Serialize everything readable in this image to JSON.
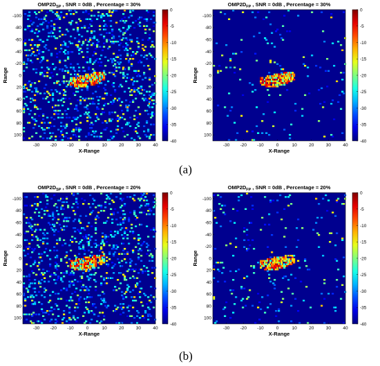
{
  "chart_data": [
    {
      "type": "heatmap",
      "title_main": "OMP2D",
      "title_sub": "SP",
      "title_rest": " , SNR = 0dB , Percentage = 30%",
      "xlabel": "X-Range",
      "ylabel": "Range",
      "xticks": [
        -30,
        -20,
        -10,
        0,
        10,
        20,
        30,
        40
      ],
      "yticks": [
        -100,
        -80,
        -60,
        -40,
        -20,
        0,
        20,
        40,
        60,
        80,
        100
      ],
      "xlim": [
        -38,
        40
      ],
      "ylim": [
        -110,
        110
      ],
      "y_reversed": true,
      "colorbar_ticks": [
        0,
        -5,
        -10,
        -15,
        -20,
        -25,
        -30,
        -35,
        -40
      ],
      "clim": [
        -40,
        0
      ],
      "noise_density": 0.14,
      "colormap": "jet",
      "background_color": "#00008f"
    },
    {
      "type": "heatmap",
      "title_main": "OMP2D",
      "title_sub": "FP",
      "title_rest": " , SNR = 0dB , Percentage = 30%",
      "xlabel": "X-Range",
      "ylabel": "Range",
      "xticks": [
        -30,
        -20,
        -10,
        0,
        10,
        20,
        30,
        40
      ],
      "yticks": [
        -100,
        -80,
        -60,
        -40,
        -20,
        0,
        20,
        40,
        60,
        80,
        100
      ],
      "xlim": [
        -38,
        40
      ],
      "ylim": [
        -110,
        110
      ],
      "y_reversed": true,
      "colorbar_ticks": [
        0,
        -5,
        -10,
        -15,
        -20,
        -25,
        -30,
        -35,
        -40
      ],
      "clim": [
        -40,
        0
      ],
      "noise_density": 0.022,
      "colormap": "jet",
      "background_color": "#00008f"
    },
    {
      "type": "heatmap",
      "title_main": "OMP2D",
      "title_sub": "SP",
      "title_rest": " , SNR = 0dB , Percentage = 20%",
      "xlabel": "X-Range",
      "ylabel": "Range",
      "xticks": [
        -30,
        -20,
        -10,
        0,
        10,
        20,
        30,
        40
      ],
      "yticks": [
        -100,
        -80,
        -60,
        -40,
        -20,
        0,
        20,
        40,
        60,
        80,
        100
      ],
      "xlim": [
        -38,
        40
      ],
      "ylim": [
        -110,
        110
      ],
      "y_reversed": true,
      "colorbar_ticks": [
        0,
        -5,
        -10,
        -15,
        -20,
        -25,
        -30,
        -35,
        -40
      ],
      "clim": [
        -40,
        0
      ],
      "noise_density": 0.13,
      "colormap": "jet",
      "background_color": "#00008f"
    },
    {
      "type": "heatmap",
      "title_main": "OMP2D",
      "title_sub": "FP",
      "title_rest": " , SNR = 0dB , Percentage = 20%",
      "xlabel": "X-Range",
      "ylabel": "Range",
      "xticks": [
        -30,
        -20,
        -10,
        0,
        10,
        20,
        30,
        40
      ],
      "yticks": [
        -100,
        -80,
        -60,
        -40,
        -20,
        0,
        20,
        40,
        60,
        80,
        100
      ],
      "xlim": [
        -38,
        40
      ],
      "ylim": [
        -110,
        110
      ],
      "y_reversed": true,
      "colorbar_ticks": [
        0,
        -5,
        -10,
        -15,
        -20,
        -25,
        -30,
        -35,
        -40
      ],
      "clim": [
        -40,
        0
      ],
      "noise_density": 0.03,
      "colormap": "jet",
      "background_color": "#00008f"
    }
  ],
  "target": {
    "x_range": [
      -10,
      10
    ],
    "range_range": [
      -5,
      20
    ]
  },
  "panel_labels": [
    "(a)",
    "(b)"
  ]
}
